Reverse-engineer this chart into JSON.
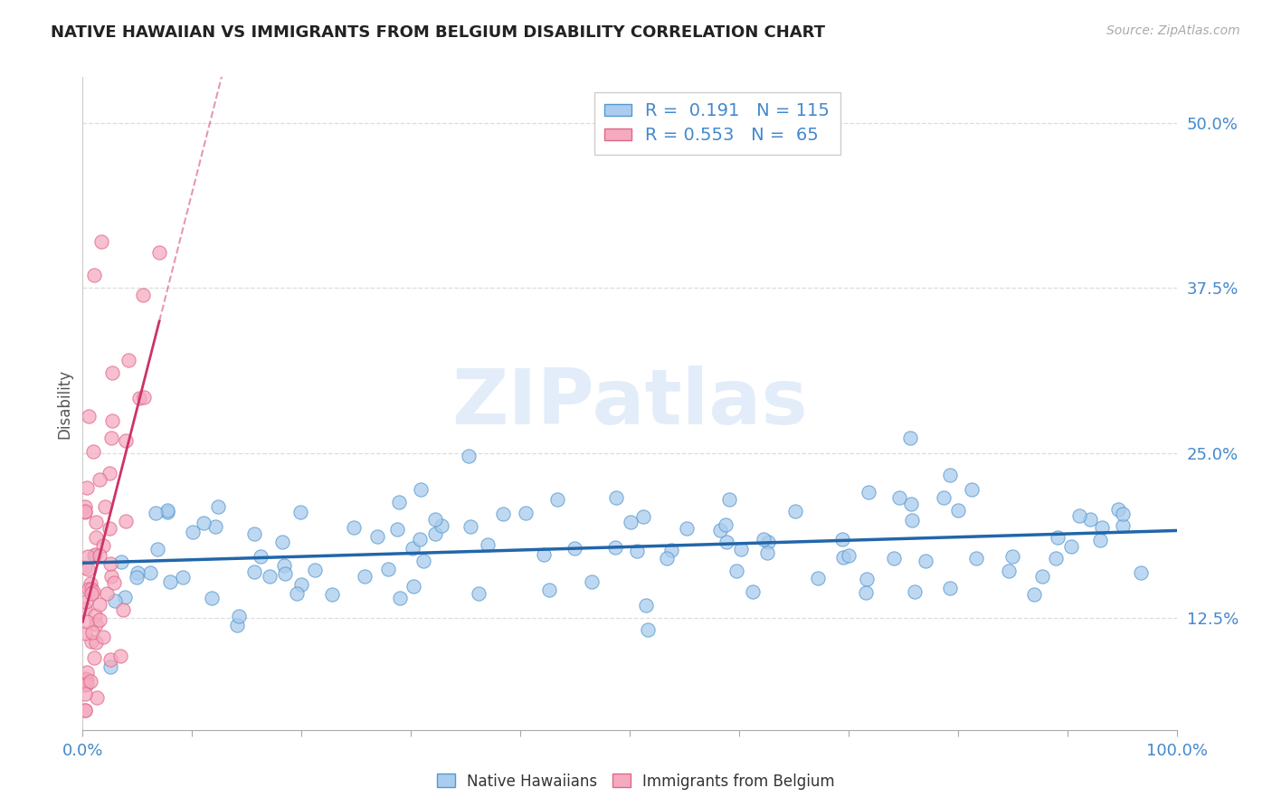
{
  "title": "NATIVE HAWAIIAN VS IMMIGRANTS FROM BELGIUM DISABILITY CORRELATION CHART",
  "source": "Source: ZipAtlas.com",
  "ylabel": "Disability",
  "xlim": [
    0.0,
    1.0
  ],
  "ylim": [
    0.04,
    0.535
  ],
  "yticks": [
    0.125,
    0.25,
    0.375,
    0.5
  ],
  "ytick_labels": [
    "12.5%",
    "25.0%",
    "37.5%",
    "50.0%"
  ],
  "xtick_positions": [
    0.0,
    0.1,
    0.2,
    0.3,
    0.4,
    0.5,
    0.6,
    0.7,
    0.8,
    0.9,
    1.0
  ],
  "xtick_labels": [
    "0.0%",
    "",
    "",
    "",
    "",
    "",
    "",
    "",
    "",
    "",
    "100.0%"
  ],
  "blue_R": 0.191,
  "blue_N": 115,
  "pink_R": 0.553,
  "pink_N": 65,
  "blue_scatter_color": "#aaccee",
  "blue_edge_color": "#5599cc",
  "pink_scatter_color": "#f5aabf",
  "pink_edge_color": "#e06688",
  "blue_line_color": "#2266aa",
  "pink_line_color": "#cc3366",
  "background_color": "#ffffff",
  "grid_color": "#dddddd",
  "title_color": "#222222",
  "label_color": "#4488cc",
  "watermark_color": "#c8ddf5",
  "watermark": "ZIPatlas",
  "legend_label_blue": "Native Hawaiians",
  "legend_label_pink": "Immigrants from Belgium",
  "title_fontsize": 13,
  "source_fontsize": 10,
  "tick_fontsize": 13,
  "legend_fontsize": 14,
  "scatter_size": 120
}
